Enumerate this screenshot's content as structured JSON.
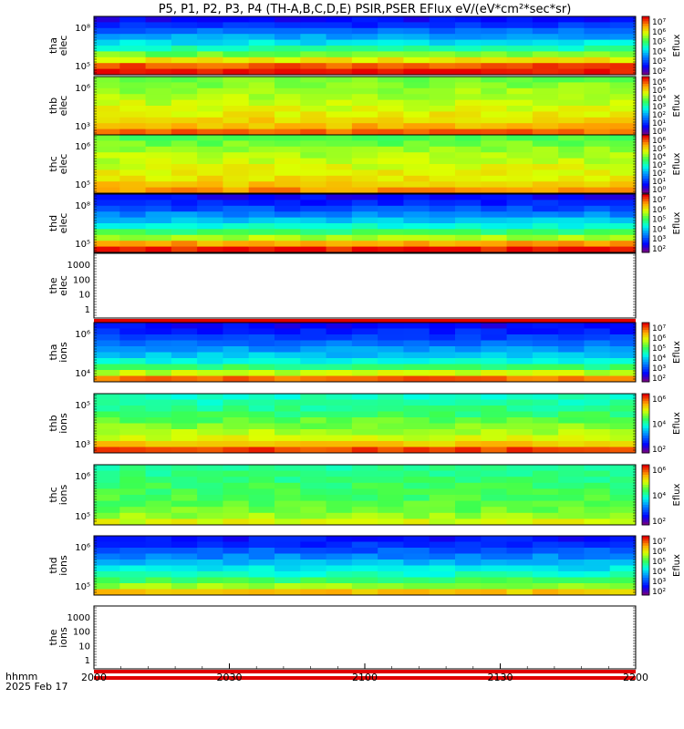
{
  "title": "P5, P1, P2, P3, P4 (TH-A,B,C,D,E) PSIR,PSER EFlux eV/(eV*cm²*sec*sr)",
  "time_axis": {
    "ticks": [
      "2000",
      "2030",
      "2100",
      "2130",
      "2200"
    ],
    "unit_label": "hhmm",
    "date_label": "2025 Feb 17"
  },
  "colorbar_label": "Eflux",
  "chart_data": [
    {
      "type": "heatmap",
      "probe": "tha",
      "species": "elec",
      "ylabel": [
        "tha",
        "elec"
      ],
      "yticks": [
        "10⁸",
        "10⁵"
      ],
      "colorbar_ticks": [
        "10⁷",
        "10⁶",
        "10⁵",
        "10⁴",
        "10³",
        "10²"
      ],
      "band_profile": [
        0.12,
        0.18,
        0.26,
        0.34,
        0.42,
        0.5,
        0.62,
        0.75,
        0.92,
        0.99
      ]
    },
    {
      "type": "heatmap",
      "probe": "thb",
      "species": "elec",
      "ylabel": [
        "thb",
        "elec"
      ],
      "yticks": [
        "10⁶",
        "10³"
      ],
      "colorbar_ticks": [
        "10⁶",
        "10⁵",
        "10⁴",
        "10³",
        "10²",
        "10¹",
        "10⁰"
      ],
      "band_profile": [
        0.62,
        0.64,
        0.66,
        0.68,
        0.7,
        0.72,
        0.74,
        0.78,
        0.82,
        0.9
      ]
    },
    {
      "type": "heatmap",
      "probe": "thc",
      "species": "elec",
      "ylabel": [
        "thc",
        "elec"
      ],
      "yticks": [
        "10⁶",
        "10⁵"
      ],
      "colorbar_ticks": [
        "10⁶",
        "10⁵",
        "10⁴",
        "10³",
        "10²",
        "10¹",
        "10⁰"
      ],
      "band_profile": [
        0.6,
        0.62,
        0.65,
        0.68,
        0.7,
        0.72,
        0.74,
        0.76,
        0.8,
        0.86
      ]
    },
    {
      "type": "heatmap",
      "probe": "thd",
      "species": "elec",
      "ylabel": [
        "thd",
        "elec"
      ],
      "yticks": [
        "10⁸",
        "10⁵"
      ],
      "colorbar_ticks": [
        "10⁷",
        "10⁶",
        "10⁵",
        "10⁴",
        "10³",
        "10²"
      ],
      "band_profile": [
        0.12,
        0.16,
        0.22,
        0.3,
        0.38,
        0.46,
        0.56,
        0.68,
        0.84,
        0.98
      ]
    },
    {
      "type": "line",
      "probe": "the",
      "species": "elec",
      "ylabel": [
        "the",
        "elec"
      ],
      "yticks": [
        "1000",
        "100",
        "10",
        "1"
      ],
      "colorbar_ticks": []
    },
    {
      "type": "heatmap",
      "probe": "tha",
      "species": "ions",
      "ylabel": [
        "tha",
        "ions"
      ],
      "yticks": [
        "10⁶",
        "10⁴"
      ],
      "colorbar_ticks": [
        "10⁷",
        "10⁶",
        "10⁵",
        "10⁴",
        "10³",
        "10²"
      ],
      "band_profile": [
        0.12,
        0.16,
        0.2,
        0.26,
        0.32,
        0.38,
        0.45,
        0.55,
        0.7,
        0.9
      ]
    },
    {
      "type": "heatmap",
      "probe": "thb",
      "species": "ions",
      "ylabel": [
        "thb",
        "ions"
      ],
      "yticks": [
        "10⁵",
        "10³"
      ],
      "colorbar_ticks": [
        "10⁶",
        "10⁴",
        "10²"
      ],
      "band_profile": [
        0.48,
        0.5,
        0.53,
        0.56,
        0.6,
        0.64,
        0.68,
        0.72,
        0.8,
        0.94
      ]
    },
    {
      "type": "heatmap",
      "probe": "thc",
      "species": "ions",
      "ylabel": [
        "thc",
        "ions"
      ],
      "yticks": [
        "10⁶",
        "10⁵"
      ],
      "colorbar_ticks": [
        "10⁶",
        "10⁴",
        "10²"
      ],
      "band_profile": [
        0.52,
        0.53,
        0.54,
        0.56,
        0.57,
        0.58,
        0.6,
        0.62,
        0.66,
        0.72
      ]
    },
    {
      "type": "heatmap",
      "probe": "thd",
      "species": "ions",
      "ylabel": [
        "thd",
        "ions"
      ],
      "yticks": [
        "10⁶",
        "10⁵"
      ],
      "colorbar_ticks": [
        "10⁷",
        "10⁶",
        "10⁵",
        "10⁴",
        "10³",
        "10²"
      ],
      "band_profile": [
        0.14,
        0.18,
        0.24,
        0.3,
        0.36,
        0.42,
        0.48,
        0.56,
        0.66,
        0.8
      ]
    },
    {
      "type": "line",
      "probe": "the",
      "species": "ions",
      "ylabel": [
        "the",
        "ions"
      ],
      "yticks": [
        "1000",
        "100",
        "10",
        "1"
      ],
      "colorbar_ticks": []
    }
  ]
}
